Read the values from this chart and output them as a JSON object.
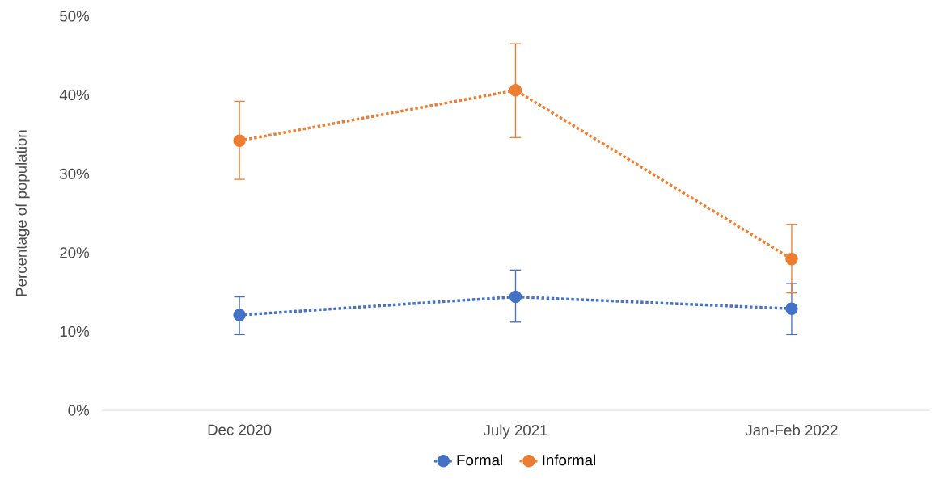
{
  "chart_data": {
    "type": "line",
    "ylabel": "Percentage of population",
    "categories": [
      "Dec 2020",
      "July 2021",
      "Jan-Feb 2022"
    ],
    "series": [
      {
        "name": "Formal",
        "color": "#4472c4",
        "values": [
          12.1,
          14.4,
          12.9
        ],
        "errors": [
          [
            9.6,
            14.4
          ],
          [
            11.2,
            17.8
          ],
          [
            9.6,
            16.1
          ]
        ]
      },
      {
        "name": "Informal",
        "color": "#ed7d31",
        "values": [
          34.2,
          40.6,
          19.2
        ],
        "errors": [
          [
            29.3,
            39.2
          ],
          [
            34.6,
            46.5
          ],
          [
            14.9,
            23.6
          ]
        ]
      }
    ],
    "ylim": [
      0,
      50
    ],
    "yticks": [
      {
        "value": 0,
        "label": "0%"
      },
      {
        "value": 10,
        "label": "10%"
      },
      {
        "value": 20,
        "label": "20%"
      },
      {
        "value": 30,
        "label": "30%"
      },
      {
        "value": 40,
        "label": "40%"
      },
      {
        "value": 50,
        "label": "50%"
      }
    ],
    "grid": false,
    "legend": "bottom",
    "marker": "circle",
    "line_style": "dotted"
  }
}
